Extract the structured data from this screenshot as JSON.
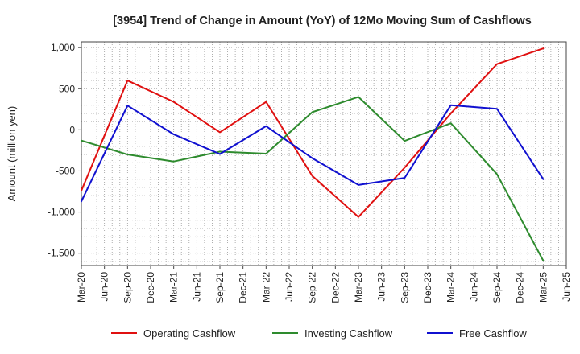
{
  "chart_data": {
    "type": "line",
    "title": "[3954]  Trend of Change in Amount (YoY) of 12Mo Moving Sum of Cashflows",
    "xlabel": "",
    "ylabel": "Amount (million yen)",
    "ylim": [
      -1650,
      1070
    ],
    "yticks": [
      1000,
      500,
      0,
      -500,
      -1000,
      -1500
    ],
    "ytick_labels": [
      "1,000",
      "500",
      "0",
      "-500",
      "-1,000",
      "-1,500"
    ],
    "categories": [
      "Mar-20",
      "Jun-20",
      "Sep-20",
      "Dec-20",
      "Mar-21",
      "Jun-21",
      "Sep-21",
      "Dec-21",
      "Mar-22",
      "Jun-22",
      "Sep-22",
      "Dec-22",
      "Mar-23",
      "Jun-23",
      "Sep-23",
      "Dec-23",
      "Mar-24",
      "Jun-24",
      "Sep-24",
      "Dec-24",
      "Mar-25",
      "Jun-25"
    ],
    "series": [
      {
        "name": "Operating Cashflow",
        "color": "#e01010",
        "points": [
          {
            "x": "Mar-20",
            "y": -740
          },
          {
            "x": "Sep-20",
            "y": 600
          },
          {
            "x": "Mar-21",
            "y": 340
          },
          {
            "x": "Sep-21",
            "y": -30
          },
          {
            "x": "Mar-22",
            "y": 340
          },
          {
            "x": "Sep-22",
            "y": -560
          },
          {
            "x": "Mar-23",
            "y": -1060
          },
          {
            "x": "Sep-23",
            "y": -460
          },
          {
            "x": "Mar-24",
            "y": 200
          },
          {
            "x": "Sep-24",
            "y": 800
          },
          {
            "x": "Mar-25",
            "y": 990
          }
        ]
      },
      {
        "name": "Investing Cashflow",
        "color": "#2e8b2e",
        "points": [
          {
            "x": "Mar-20",
            "y": -130
          },
          {
            "x": "Sep-20",
            "y": -300
          },
          {
            "x": "Mar-21",
            "y": -385
          },
          {
            "x": "Sep-21",
            "y": -265
          },
          {
            "x": "Mar-22",
            "y": -290
          },
          {
            "x": "Sep-22",
            "y": 215
          },
          {
            "x": "Mar-23",
            "y": 400
          },
          {
            "x": "Sep-23",
            "y": -135
          },
          {
            "x": "Mar-24",
            "y": 80
          },
          {
            "x": "Sep-24",
            "y": -540
          },
          {
            "x": "Mar-25",
            "y": -1590
          }
        ]
      },
      {
        "name": "Free Cashflow",
        "color": "#1010d0",
        "points": [
          {
            "x": "Mar-20",
            "y": -870
          },
          {
            "x": "Sep-20",
            "y": 295
          },
          {
            "x": "Mar-21",
            "y": -55
          },
          {
            "x": "Sep-21",
            "y": -295
          },
          {
            "x": "Mar-22",
            "y": 45
          },
          {
            "x": "Sep-22",
            "y": -345
          },
          {
            "x": "Mar-23",
            "y": -670
          },
          {
            "x": "Sep-23",
            "y": -585
          },
          {
            "x": "Mar-24",
            "y": 300
          },
          {
            "x": "Sep-24",
            "y": 255
          },
          {
            "x": "Mar-25",
            "y": -600
          }
        ]
      }
    ],
    "grid": true,
    "legend": "bottom"
  }
}
